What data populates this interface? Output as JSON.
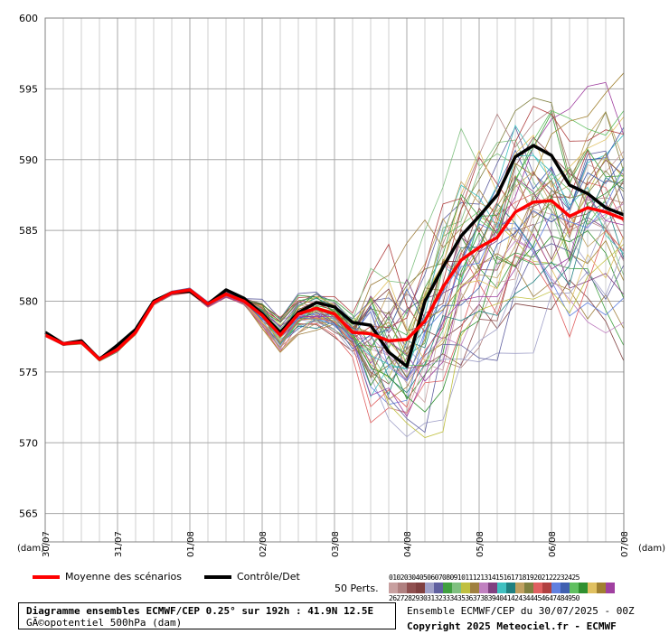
{
  "chart_data": {
    "type": "line",
    "ylim": [
      563,
      600
    ],
    "y_ticks": [
      "565",
      "570",
      "575",
      "580",
      "585",
      "590",
      "595",
      "600"
    ],
    "x_tick_labels": [
      "30/07",
      "31/07",
      "01/08",
      "02/08",
      "03/08",
      "04/08",
      "05/08",
      "06/08",
      "07/08"
    ],
    "x_step_hours": 12,
    "unit_left": "(dam)",
    "unit_right": "(dam)",
    "grid": true,
    "series": [
      {
        "name": "Moyenne des scénarios",
        "color": "#ff0000",
        "values": [
          577.6,
          577.0,
          577.1,
          575.9,
          576.6,
          577.8,
          579.9,
          580.6,
          580.8,
          579.8,
          580.5,
          580.0,
          579.0,
          577.6,
          579.1,
          579.5,
          579.1,
          577.8,
          577.7,
          577.2,
          577.3,
          578.6,
          581.0,
          582.9,
          583.8,
          584.5,
          586.3,
          587.0,
          587.1,
          586.0,
          586.6,
          586.3,
          585.8
        ]
      },
      {
        "name": "Contrôle/Det",
        "color": "#000000",
        "values": [
          577.8,
          577.0,
          577.2,
          575.9,
          576.9,
          578.0,
          580.0,
          580.6,
          580.7,
          579.8,
          580.8,
          580.2,
          579.1,
          577.8,
          579.2,
          579.9,
          579.6,
          578.5,
          578.3,
          576.4,
          575.4,
          580.0,
          582.4,
          584.6,
          586.0,
          587.5,
          590.2,
          591.0,
          590.3,
          588.2,
          587.6,
          586.6,
          586.1
        ]
      }
    ]
  },
  "legend": {
    "mean_label": "Moyenne des scénarios",
    "control_label": "Contrôle/Det",
    "perts_label": "50 Perts.",
    "pert_numbers_row1": "01020304050607080910111213141516171819202122232425",
    "pert_numbers_row2": "26272829303132333435363738394041424344454647484950"
  },
  "pert_colors": [
    "#c8a0a0",
    "#b08080",
    "#905050",
    "#804040",
    "#a0a0c8",
    "#6060a0",
    "#40a040",
    "#80c080",
    "#c0c040",
    "#a08040",
    "#c080c0",
    "#804080",
    "#40c0c0",
    "#208080",
    "#c0a060",
    "#808040",
    "#e06060",
    "#b04040",
    "#6080e0",
    "#4060b0",
    "#60c060",
    "#309030",
    "#e0c060",
    "#a08030",
    "#a040a0"
  ],
  "footer": {
    "title": "Diagramme ensembles ECMWF/CEP 0.25° sur 192h : 41.9N 12.5E",
    "subtitle": "GÃ©opotentiel 500hPa (dam)",
    "run": "Ensemble ECMWF/CEP du 30/07/2025 - 00Z",
    "copyright": "Copyright 2025 Meteociel.fr - ECMWF"
  }
}
